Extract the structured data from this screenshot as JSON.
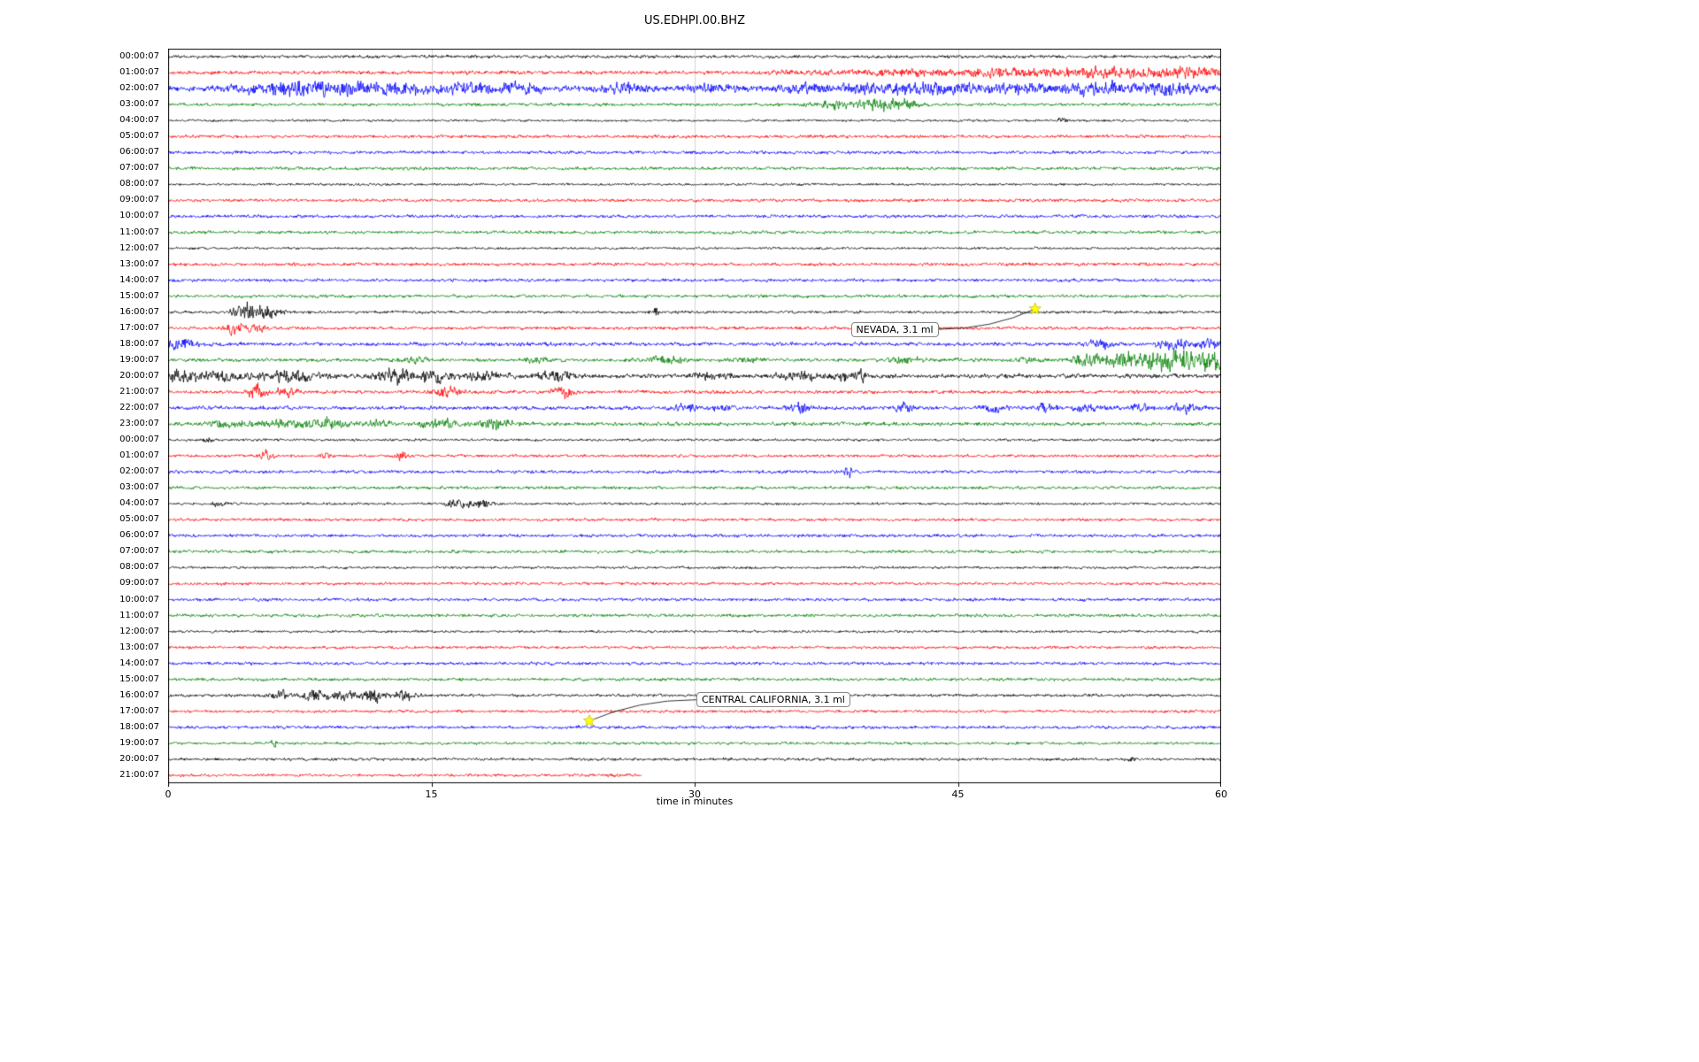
{
  "chart_data": {
    "type": "line",
    "title": "US.EDHPI.00.BHZ",
    "xlabel": "time in minutes",
    "x_range": [
      0,
      60
    ],
    "x_ticks": [
      0,
      15,
      30,
      45,
      60
    ],
    "grid": "vertical-gridlines-at-15-30-45",
    "legend": "none",
    "trace_colors": {
      "black": "#000000",
      "red": "#ff0000",
      "blue": "#0000ff",
      "green": "#008000"
    },
    "events_format": "[center_minute, half_width_minutes, amplitude_px]",
    "rows": [
      {
        "label": "00:00:07",
        "color": "black",
        "base": 2.0,
        "events": []
      },
      {
        "label": "01:00:07",
        "color": "red",
        "base": 2.4,
        "events": [
          [
            36,
            2,
            2
          ],
          [
            42,
            5,
            3
          ],
          [
            48,
            4,
            4
          ],
          [
            53,
            4,
            5
          ],
          [
            58,
            3,
            6
          ]
        ]
      },
      {
        "label": "02:00:07",
        "color": "blue",
        "base": 3.5,
        "events": [
          [
            6,
            3,
            5
          ],
          [
            9,
            3,
            7
          ],
          [
            13,
            3,
            6
          ],
          [
            17,
            2,
            7
          ],
          [
            20,
            2,
            5
          ],
          [
            26,
            2,
            4
          ],
          [
            31,
            2,
            4
          ],
          [
            36,
            2,
            4
          ],
          [
            40,
            3,
            5
          ],
          [
            44,
            3,
            6
          ],
          [
            48,
            3,
            5
          ],
          [
            53,
            3,
            6
          ],
          [
            57,
            3,
            5
          ]
        ]
      },
      {
        "label": "03:00:07",
        "color": "green",
        "base": 2.0,
        "events": [
          [
            38,
            2,
            4
          ],
          [
            40.5,
            1.5,
            7
          ],
          [
            42,
            1,
            5
          ]
        ]
      },
      {
        "label": "04:00:07",
        "color": "black",
        "base": 1.5,
        "events": [
          [
            51,
            0.4,
            3
          ]
        ]
      },
      {
        "label": "05:00:07",
        "color": "red",
        "base": 2.0,
        "events": []
      },
      {
        "label": "06:00:07",
        "color": "blue",
        "base": 2.0,
        "events": []
      },
      {
        "label": "07:00:07",
        "color": "green",
        "base": 2.0,
        "events": []
      },
      {
        "label": "08:00:07",
        "color": "black",
        "base": 1.5,
        "events": []
      },
      {
        "label": "09:00:07",
        "color": "red",
        "base": 2.0,
        "events": []
      },
      {
        "label": "10:00:07",
        "color": "blue",
        "base": 2.0,
        "events": []
      },
      {
        "label": "11:00:07",
        "color": "green",
        "base": 2.0,
        "events": []
      },
      {
        "label": "12:00:07",
        "color": "black",
        "base": 1.5,
        "events": []
      },
      {
        "label": "13:00:07",
        "color": "red",
        "base": 2.0,
        "events": []
      },
      {
        "label": "14:00:07",
        "color": "blue",
        "base": 2.0,
        "events": []
      },
      {
        "label": "15:00:07",
        "color": "green",
        "base": 2.0,
        "events": []
      },
      {
        "label": "16:00:07",
        "color": "black",
        "base": 1.8,
        "events": [
          [
            4.3,
            1,
            7
          ],
          [
            5.5,
            1.2,
            8
          ],
          [
            27.8,
            0.3,
            6
          ]
        ]
      },
      {
        "label": "17:00:07",
        "color": "red",
        "base": 2.0,
        "events": [
          [
            3.8,
            0.7,
            7
          ],
          [
            5.1,
            0.7,
            6
          ]
        ]
      },
      {
        "label": "18:00:07",
        "color": "blue",
        "base": 2.4,
        "events": [
          [
            0.8,
            1.2,
            6
          ],
          [
            53,
            0.8,
            6
          ],
          [
            57.5,
            1.5,
            5
          ],
          [
            59.5,
            1,
            5
          ]
        ]
      },
      {
        "label": "19:00:07",
        "color": "green",
        "base": 2.2,
        "events": [
          [
            14,
            1,
            3
          ],
          [
            21,
            1,
            3
          ],
          [
            28.5,
            1.5,
            4
          ],
          [
            33,
            1,
            3
          ],
          [
            42,
            1.5,
            3
          ],
          [
            49,
            1,
            3
          ],
          [
            52.5,
            1.5,
            7
          ],
          [
            55,
            2,
            11
          ],
          [
            57.5,
            2,
            13
          ],
          [
            59.5,
            1,
            12
          ]
        ]
      },
      {
        "label": "20:00:07",
        "color": "black",
        "base": 2.8,
        "events": [
          [
            0.8,
            1.5,
            7
          ],
          [
            3,
            1.5,
            6
          ],
          [
            7,
            2.5,
            6
          ],
          [
            12.8,
            1.5,
            8
          ],
          [
            15.2,
            1.5,
            7
          ],
          [
            18,
            1.5,
            5
          ],
          [
            22,
            1.5,
            5
          ],
          [
            31,
            1.5,
            4
          ],
          [
            36,
            1.5,
            5
          ],
          [
            38.5,
            1,
            6
          ],
          [
            39.5,
            0.3,
            9
          ]
        ]
      },
      {
        "label": "21:00:07",
        "color": "red",
        "base": 2.2,
        "events": [
          [
            5,
            0.8,
            7
          ],
          [
            6.8,
            0.8,
            6
          ],
          [
            16,
            1.2,
            5
          ],
          [
            22.5,
            0.8,
            6
          ]
        ]
      },
      {
        "label": "22:00:07",
        "color": "blue",
        "base": 2.4,
        "events": [
          [
            29.5,
            0.8,
            4
          ],
          [
            31.5,
            0.8,
            4
          ],
          [
            36,
            1,
            5
          ],
          [
            42,
            0.8,
            4
          ],
          [
            47,
            0.8,
            4
          ],
          [
            50,
            0.8,
            4
          ],
          [
            52.5,
            1,
            5
          ],
          [
            55.5,
            0.8,
            4
          ],
          [
            58,
            1.2,
            5
          ]
        ]
      },
      {
        "label": "23:00:07",
        "color": "green",
        "base": 2.4,
        "events": [
          [
            3.5,
            1.5,
            5
          ],
          [
            6.5,
            1.5,
            5
          ],
          [
            9,
            1.5,
            6
          ],
          [
            12,
            1,
            4
          ],
          [
            15.5,
            1.5,
            5
          ],
          [
            18.8,
            1.2,
            6
          ]
        ]
      },
      {
        "label": "00:00:07",
        "color": "black",
        "base": 1.6,
        "events": [
          [
            2.2,
            0.4,
            5
          ]
        ]
      },
      {
        "label": "01:00:07",
        "color": "red",
        "base": 1.8,
        "events": [
          [
            5.6,
            0.6,
            6
          ],
          [
            9,
            0.5,
            3
          ],
          [
            13.3,
            0.5,
            5
          ]
        ]
      },
      {
        "label": "02:00:07",
        "color": "blue",
        "base": 2.0,
        "events": [
          [
            38.8,
            0.5,
            6
          ]
        ]
      },
      {
        "label": "03:00:07",
        "color": "green",
        "base": 2.0,
        "events": []
      },
      {
        "label": "04:00:07",
        "color": "black",
        "base": 1.6,
        "events": [
          [
            3,
            0.6,
            4
          ],
          [
            16.5,
            1,
            5
          ],
          [
            17.8,
            0.8,
            4
          ]
        ]
      },
      {
        "label": "05:00:07",
        "color": "red",
        "base": 1.8,
        "events": []
      },
      {
        "label": "06:00:07",
        "color": "blue",
        "base": 2.0,
        "events": []
      },
      {
        "label": "07:00:07",
        "color": "green",
        "base": 2.0,
        "events": []
      },
      {
        "label": "08:00:07",
        "color": "black",
        "base": 1.6,
        "events": []
      },
      {
        "label": "09:00:07",
        "color": "red",
        "base": 1.8,
        "events": []
      },
      {
        "label": "10:00:07",
        "color": "blue",
        "base": 2.0,
        "events": []
      },
      {
        "label": "11:00:07",
        "color": "green",
        "base": 2.0,
        "events": []
      },
      {
        "label": "12:00:07",
        "color": "black",
        "base": 1.6,
        "events": []
      },
      {
        "label": "13:00:07",
        "color": "red",
        "base": 1.8,
        "events": []
      },
      {
        "label": "14:00:07",
        "color": "blue",
        "base": 2.0,
        "events": []
      },
      {
        "label": "15:00:07",
        "color": "green",
        "base": 2.0,
        "events": []
      },
      {
        "label": "16:00:07",
        "color": "black",
        "base": 1.8,
        "events": [
          [
            6.5,
            0.8,
            5
          ],
          [
            8.2,
            1,
            7
          ],
          [
            10,
            1.2,
            5
          ],
          [
            11.8,
            1,
            7
          ],
          [
            13.6,
            0.8,
            6
          ]
        ]
      },
      {
        "label": "17:00:07",
        "color": "red",
        "base": 1.8,
        "events": []
      },
      {
        "label": "18:00:07",
        "color": "blue",
        "base": 2.0,
        "events": []
      },
      {
        "label": "19:00:07",
        "color": "green",
        "base": 1.8,
        "events": [
          [
            6,
            0.3,
            4
          ]
        ]
      },
      {
        "label": "20:00:07",
        "color": "black",
        "base": 1.8,
        "events": [
          [
            55,
            0.4,
            3
          ]
        ]
      },
      {
        "label": "21:00:07",
        "color": "red",
        "base": 1.8,
        "end": 27,
        "events": []
      }
    ],
    "annotations": [
      {
        "text": "NEVADA, 3.1 ml",
        "star_minute": 49.4,
        "star_row": 15.8,
        "label_minute": 38.9,
        "label_row": 17.1,
        "star_color": "#ffff00"
      },
      {
        "text": "CENTRAL CALIFORNIA, 3.1 ml",
        "star_minute": 24.0,
        "star_row": 41.6,
        "label_minute": 30.1,
        "label_row": 40.3,
        "star_color": "#ffff00"
      }
    ]
  }
}
